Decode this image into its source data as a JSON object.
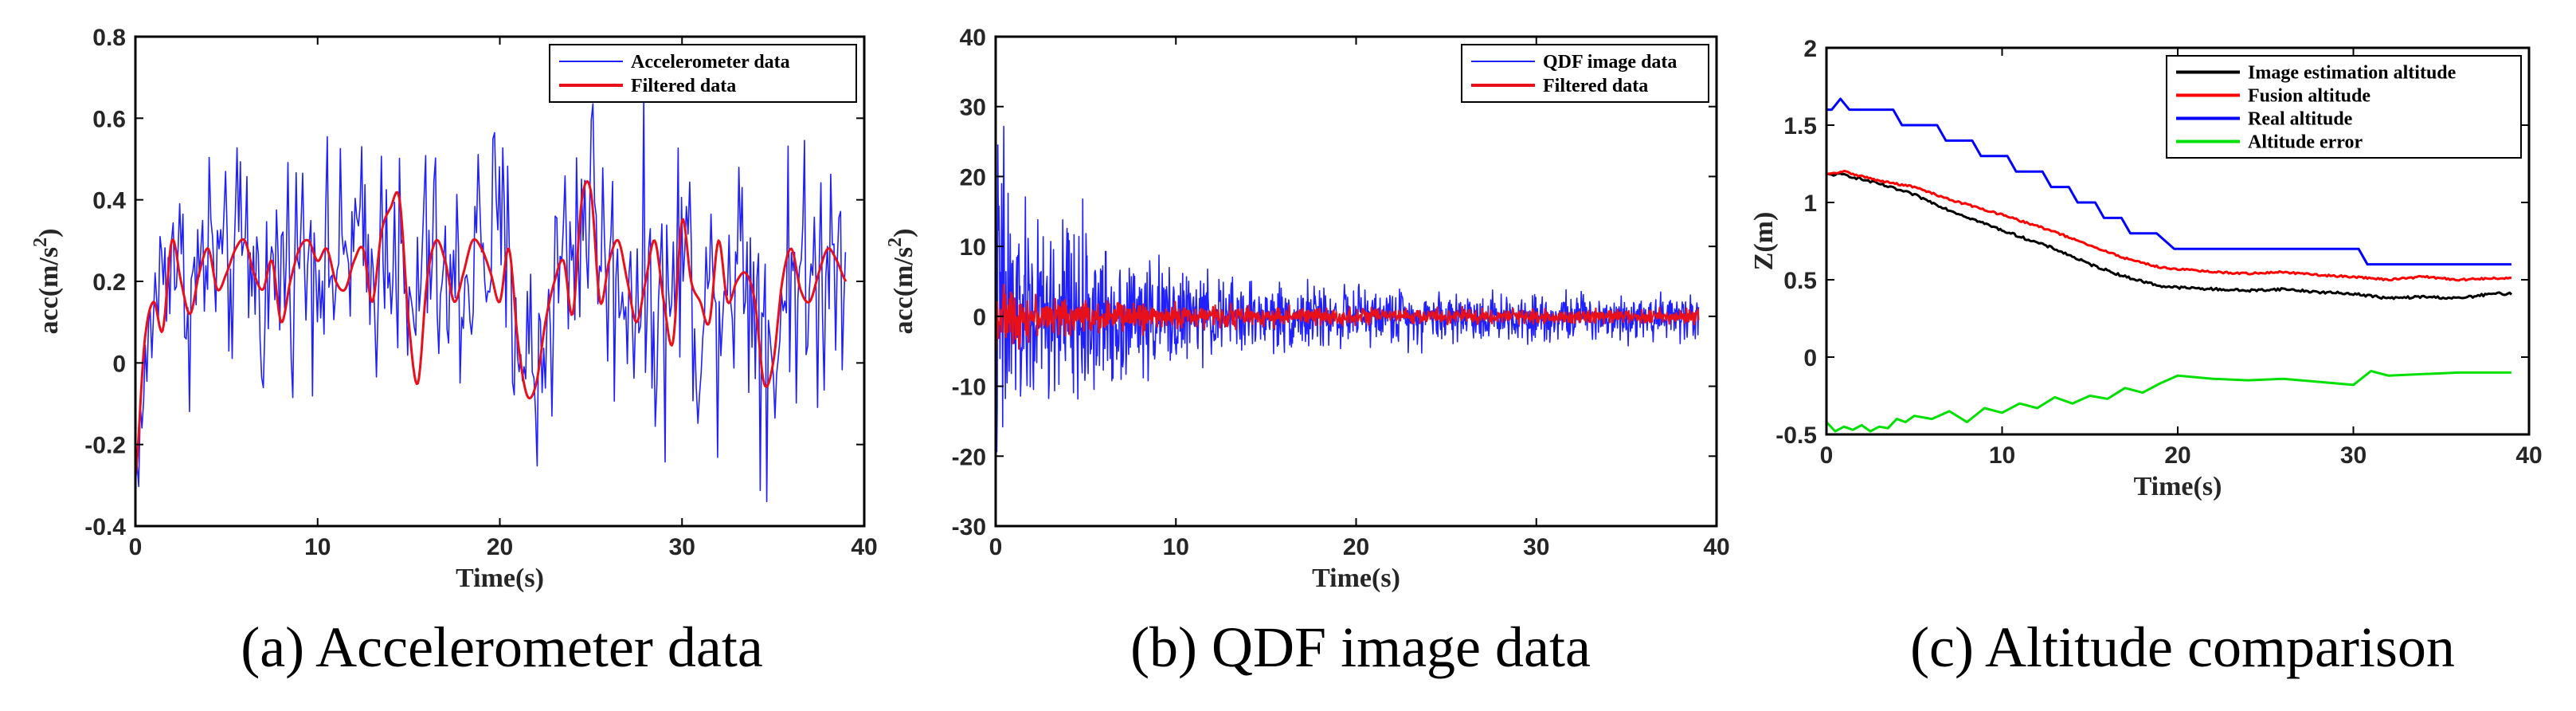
{
  "chart_data": [
    {
      "type": "line",
      "caption": "(a) Accelerometer data",
      "xlabel": "Time(s)",
      "ylabel": "acc(m/s",
      "ylabel_sup": "2",
      "ylabel_close": ")",
      "xlim": [
        0,
        40
      ],
      "ylim": [
        -0.4,
        0.8
      ],
      "xticks": [
        0,
        10,
        20,
        30,
        40
      ],
      "xtick_labels": [
        "0",
        "10",
        "20",
        "30",
        "40"
      ],
      "yticks": [
        -0.4,
        -0.2,
        0,
        0.2,
        0.4,
        0.6,
        0.8
      ],
      "ytick_labels": [
        "-0.4",
        "-0.2",
        "0",
        "0.2",
        "0.4",
        "0.6",
        "0.8"
      ],
      "legend_position": "top-right",
      "series": [
        {
          "name": "Accelerometer data",
          "color": "#2020ff",
          "style": "noisy",
          "x": [
            0,
            1,
            2,
            3,
            4,
            5,
            6,
            7,
            8,
            9,
            10,
            11,
            12,
            13,
            14,
            15,
            16,
            17,
            18,
            19,
            20,
            21,
            22,
            23,
            24,
            25,
            26,
            27,
            28,
            29,
            30,
            31,
            32,
            33,
            34,
            35,
            36,
            37,
            38,
            39
          ],
          "values": [
            -0.28,
            0.15,
            0.3,
            0.15,
            0.28,
            0.2,
            0.3,
            0.15,
            0.25,
            0.28,
            0.28,
            0.22,
            0.3,
            0.2,
            0.38,
            0.05,
            0.3,
            0.15,
            0.2,
            0.3,
            0.3,
            0.1,
            -0.05,
            0.2,
            0.3,
            0.42,
            0.2,
            0.2,
            0.2,
            0.1,
            0.3,
            0.1,
            0.2,
            0.28,
            0.2,
            0.0,
            0.28,
            0.15,
            0.28,
            0.25
          ],
          "amplitude": [
            0.1,
            0.18,
            0.2,
            0.22,
            0.25,
            0.22,
            0.25,
            0.22,
            0.25,
            0.25,
            0.25,
            0.22,
            0.25,
            0.25,
            0.28,
            0.28,
            0.25,
            0.25,
            0.28,
            0.3,
            0.28,
            0.28,
            0.28,
            0.28,
            0.3,
            0.3,
            0.28,
            0.28,
            0.3,
            0.3,
            0.3,
            0.3,
            0.3,
            0.3,
            0.32,
            0.32,
            0.32,
            0.3,
            0.3,
            0.28
          ],
          "step": 0.09
        },
        {
          "name": "Filtered data",
          "color": "#e8101a",
          "style": "smooth",
          "x": [
            0,
            0.5,
            1,
            1.5,
            2,
            2.5,
            3,
            3.5,
            4,
            4.5,
            5,
            5.5,
            6,
            6.5,
            7,
            7.5,
            8,
            8.5,
            9,
            9.5,
            10,
            10.5,
            11,
            11.5,
            12,
            12.5,
            13,
            13.5,
            14,
            14.5,
            15,
            15.5,
            16,
            16.5,
            17,
            17.5,
            18,
            18.5,
            19,
            19.5,
            20,
            20.5,
            21,
            21.5,
            22,
            22.5,
            23,
            23.5,
            24,
            24.5,
            25,
            25.5,
            26,
            26.5,
            27,
            27.5,
            28,
            28.5,
            29,
            29.5,
            30,
            30.5,
            31,
            31.5,
            32,
            32.5,
            33,
            33.5,
            34,
            34.5,
            35,
            35.5,
            36,
            36.5,
            37,
            37.5,
            38,
            38.5,
            39
          ],
          "values": [
            -0.28,
            0.05,
            0.15,
            0.08,
            0.3,
            0.2,
            0.12,
            0.22,
            0.28,
            0.18,
            0.22,
            0.28,
            0.3,
            0.22,
            0.18,
            0.25,
            0.1,
            0.2,
            0.28,
            0.3,
            0.25,
            0.28,
            0.2,
            0.18,
            0.25,
            0.28,
            0.15,
            0.32,
            0.38,
            0.4,
            0.1,
            -0.05,
            0.2,
            0.3,
            0.25,
            0.15,
            0.22,
            0.3,
            0.28,
            0.22,
            0.15,
            0.28,
            0.05,
            -0.08,
            -0.05,
            0.1,
            0.2,
            0.25,
            0.12,
            0.4,
            0.42,
            0.15,
            0.25,
            0.3,
            0.2,
            0.1,
            0.2,
            0.3,
            0.15,
            0.05,
            0.35,
            0.2,
            0.15,
            0.1,
            0.3,
            0.15,
            0.2,
            0.22,
            0.15,
            -0.05,
            0.0,
            0.2,
            0.28,
            0.18,
            0.15,
            0.22,
            0.28,
            0.25,
            0.2
          ]
        }
      ]
    },
    {
      "type": "line",
      "caption": "(b) QDF image data",
      "xlabel": "Time(s)",
      "ylabel": "acc(m/s",
      "ylabel_sup": "2",
      "ylabel_close": ")",
      "xlim": [
        0,
        40
      ],
      "ylim": [
        -30,
        40
      ],
      "xticks": [
        0,
        10,
        20,
        30,
        40
      ],
      "xtick_labels": [
        "0",
        "10",
        "20",
        "30",
        "40"
      ],
      "yticks": [
        -30,
        -20,
        -10,
        0,
        10,
        20,
        30,
        40
      ],
      "ytick_labels": [
        "-30",
        "-20",
        "-10",
        "0",
        "10",
        "20",
        "30",
        "40"
      ],
      "legend_position": "top-right",
      "series": [
        {
          "name": "QDF image data",
          "color": "#2020ff",
          "style": "noisy",
          "x": [
            0,
            0.5,
            1,
            2,
            3,
            4,
            5,
            6,
            8,
            10,
            12,
            15,
            20,
            25,
            30,
            35,
            39
          ],
          "values": [
            0,
            0,
            0,
            0,
            0,
            0,
            0,
            0,
            0,
            0,
            0,
            0,
            0,
            0,
            0,
            0,
            0
          ],
          "amplitude": [
            22,
            28,
            14,
            12,
            12,
            14,
            11,
            9,
            8,
            6,
            5,
            4.5,
            3.5,
            3.5,
            3,
            3,
            3
          ],
          "step": 0.03
        },
        {
          "name": "Filtered data",
          "color": "#e8101a",
          "style": "noisy",
          "x": [
            0,
            1,
            2,
            5,
            10,
            20,
            30,
            39
          ],
          "values": [
            0,
            0,
            0,
            0,
            0,
            0,
            0,
            0
          ],
          "amplitude": [
            3.5,
            3.5,
            2.5,
            2.2,
            1.5,
            1.0,
            1.0,
            0.9
          ],
          "step": 0.03
        }
      ]
    },
    {
      "type": "line",
      "caption": "(c) Altitude comparison",
      "xlabel": "Time(s)",
      "ylabel": "Z(m)",
      "ylabel_sup": "",
      "ylabel_close": "",
      "xlim": [
        0,
        40
      ],
      "ylim": [
        -0.5,
        2
      ],
      "xticks": [
        0,
        10,
        20,
        30,
        40
      ],
      "xtick_labels": [
        "0",
        "10",
        "20",
        "30",
        "40"
      ],
      "yticks": [
        -0.5,
        0,
        0.5,
        1,
        1.5,
        2
      ],
      "ytick_labels": [
        "-0.5",
        "0",
        "0.5",
        "1",
        "1.5",
        "2"
      ],
      "legend_position": "top-right",
      "series": [
        {
          "name": "Image estimation altitude",
          "color": "#000000",
          "style": "jitter",
          "x": [
            0,
            1,
            3,
            5,
            7,
            10,
            13,
            15,
            17,
            19,
            20,
            22,
            24,
            26,
            28,
            30,
            32,
            34,
            36,
            38,
            39
          ],
          "values": [
            1.18,
            1.18,
            1.12,
            1.05,
            0.95,
            0.82,
            0.7,
            0.6,
            0.52,
            0.46,
            0.45,
            0.44,
            0.43,
            0.44,
            0.42,
            0.41,
            0.38,
            0.39,
            0.38,
            0.41,
            0.41
          ],
          "jitter": 0.008
        },
        {
          "name": "Fusion altitude",
          "color": "#ff0000",
          "style": "jitter",
          "x": [
            0,
            1,
            3,
            5,
            7,
            10,
            13,
            15,
            17,
            19,
            20,
            22,
            24,
            26,
            28,
            30,
            32,
            34,
            36,
            38,
            39
          ],
          "values": [
            1.18,
            1.2,
            1.14,
            1.1,
            1.02,
            0.92,
            0.81,
            0.72,
            0.64,
            0.58,
            0.57,
            0.55,
            0.54,
            0.55,
            0.53,
            0.52,
            0.5,
            0.52,
            0.5,
            0.51,
            0.51
          ],
          "jitter": 0.006
        },
        {
          "name": "Real altitude",
          "color": "#0000ff",
          "style": "exact",
          "x": [
            0,
            0.3,
            0.8,
            1.3,
            1.8,
            2.3,
            3.8,
            4.3,
            6.3,
            6.8,
            8.3,
            8.8,
            10.3,
            10.8,
            12.3,
            12.8,
            13.8,
            14.3,
            15.3,
            15.8,
            16.8,
            17.3,
            18.8,
            19.3,
            19.8,
            30.3,
            30.8,
            39
          ],
          "values": [
            1.6,
            1.6,
            1.67,
            1.6,
            1.6,
            1.6,
            1.6,
            1.5,
            1.5,
            1.4,
            1.4,
            1.3,
            1.3,
            1.2,
            1.2,
            1.1,
            1.1,
            1.0,
            1.0,
            0.9,
            0.9,
            0.8,
            0.8,
            0.75,
            0.7,
            0.7,
            0.6,
            0.6
          ]
        },
        {
          "name": "Altitude error",
          "color": "#00e000",
          "style": "exact",
          "x": [
            0,
            0.5,
            1,
            1.5,
            2,
            2.5,
            3,
            3.5,
            4,
            4.5,
            5,
            6,
            7,
            8,
            9,
            10,
            11,
            12,
            13,
            14,
            15,
            16,
            17,
            18,
            19,
            20,
            21,
            22,
            24,
            26,
            28,
            30,
            31,
            32,
            34,
            36,
            38,
            39
          ],
          "values": [
            -0.42,
            -0.48,
            -0.45,
            -0.47,
            -0.44,
            -0.48,
            -0.45,
            -0.46,
            -0.4,
            -0.42,
            -0.38,
            -0.4,
            -0.35,
            -0.42,
            -0.33,
            -0.36,
            -0.3,
            -0.33,
            -0.26,
            -0.3,
            -0.25,
            -0.27,
            -0.2,
            -0.23,
            -0.17,
            -0.12,
            -0.13,
            -0.14,
            -0.15,
            -0.14,
            -0.16,
            -0.18,
            -0.09,
            -0.12,
            -0.11,
            -0.1,
            -0.1,
            -0.1
          ]
        }
      ]
    }
  ]
}
